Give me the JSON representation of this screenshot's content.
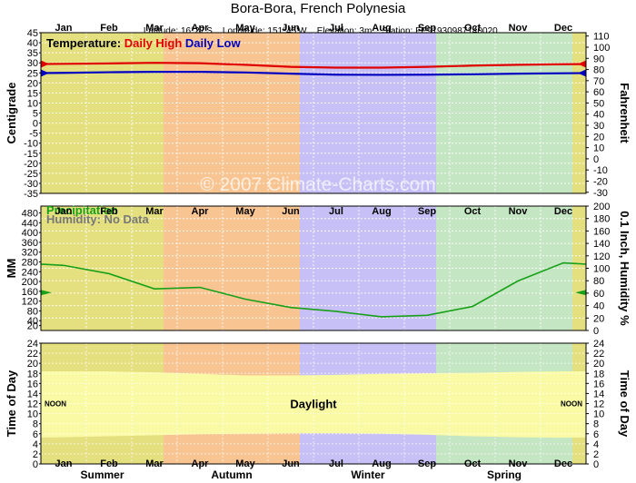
{
  "header": {
    "title": "Bora-Bora,  French Polynesia",
    "latitude": "Latitude: 16°27'S",
    "longitude": "Longitude: 151°45'W",
    "elevation": "Elevation: 3m",
    "station": "Station: FP91930987140020"
  },
  "watermark": "© 2007 Climate-Charts.com",
  "colors": {
    "summer": "#e5e07f",
    "autumn": "#f8c592",
    "winter": "#c6c0f6",
    "spring": "#c5e6c3",
    "high": "#e00000",
    "low": "#0000c0",
    "precip": "#18a018",
    "daylight": "#fafaa4",
    "night_tint": "#000000"
  },
  "chart_data": [
    {
      "type": "line",
      "panel": "temperature",
      "legend_label": "Temperature:",
      "x": [
        "Jan",
        "Feb",
        "Mar",
        "Apr",
        "May",
        "Jun",
        "Jul",
        "Aug",
        "Sep",
        "Oct",
        "Nov",
        "Dec"
      ],
      "series": [
        {
          "name": "Daily High",
          "values": [
            29.5,
            29.7,
            30.0,
            29.8,
            29.0,
            28.0,
            27.6,
            27.6,
            28.0,
            28.6,
            29.0,
            29.3
          ]
        },
        {
          "name": "Daily Low",
          "values": [
            25.0,
            25.3,
            25.5,
            25.5,
            25.2,
            24.6,
            24.1,
            24.0,
            24.1,
            24.3,
            24.6,
            24.8
          ]
        }
      ],
      "ylabel": "Centigrade",
      "ylabel_right": "Fahrenheit",
      "ylim": [
        -35,
        45
      ],
      "yticks": [
        -35,
        -30,
        -25,
        -20,
        -15,
        -10,
        -5,
        0,
        5,
        10,
        15,
        20,
        25,
        30,
        35,
        40,
        45
      ],
      "ylim_right": [
        -31,
        113
      ],
      "yticks_right": [
        -30,
        -20,
        -10,
        0,
        10,
        20,
        30,
        40,
        50,
        60,
        70,
        80,
        90,
        100,
        110
      ],
      "grid": true
    },
    {
      "type": "line",
      "panel": "precipitation",
      "x": [
        "Jan",
        "Feb",
        "Mar",
        "Apr",
        "May",
        "Jun",
        "Jul",
        "Aug",
        "Sep",
        "Oct",
        "Nov",
        "Dec"
      ],
      "series": [
        {
          "name": "Precipitation",
          "values": [
            266,
            232,
            170,
            176,
            128,
            94,
            78,
            56,
            62,
            98,
            202,
            276
          ]
        }
      ],
      "humidity_note": "Humidity: No Data",
      "ylabel": "MM",
      "ylabel_right": "0.1 Inch, Humidity %",
      "ylim": [
        0,
        508
      ],
      "yticks": [
        0,
        20,
        40,
        60,
        80,
        100,
        120,
        140,
        160,
        180,
        200,
        220,
        240,
        260,
        280,
        300,
        320,
        340,
        360,
        380,
        400,
        420,
        440,
        460,
        480,
        500
      ],
      "yticks_labels": [
        20,
        40,
        80,
        120,
        160,
        200,
        240,
        280,
        320,
        360,
        400,
        440,
        480
      ],
      "ylim_right": [
        0,
        200
      ],
      "yticks_right": [
        0,
        20,
        40,
        60,
        80,
        100,
        120,
        140,
        160,
        180,
        200
      ],
      "grid": true
    },
    {
      "type": "area",
      "panel": "daylight",
      "x": [
        "Jan",
        "Feb",
        "Mar",
        "Apr",
        "May",
        "Jun",
        "Jul",
        "Aug",
        "Sep",
        "Oct",
        "Nov",
        "Dec"
      ],
      "series": [
        {
          "name": "Sunrise",
          "values": [
            5.3,
            5.5,
            5.7,
            5.9,
            6.0,
            6.1,
            6.1,
            6.0,
            5.8,
            5.5,
            5.3,
            5.2
          ]
        },
        {
          "name": "Sunset",
          "values": [
            18.4,
            18.4,
            18.2,
            17.9,
            17.6,
            17.6,
            17.7,
            17.9,
            18.0,
            18.1,
            18.3,
            18.4
          ]
        }
      ],
      "label": "Daylight",
      "noon_label": "NOON",
      "ylabel": "Time of Day",
      "ylabel_right": "Time of Day",
      "ylim": [
        0,
        24
      ],
      "yticks": [
        0,
        2,
        4,
        6,
        8,
        10,
        12,
        14,
        16,
        18,
        20,
        22,
        24
      ],
      "grid": true
    }
  ],
  "months_top": [
    "Jan",
    "Feb",
    "Mar",
    "Apr",
    "May",
    "Jun",
    "Jul",
    "Aug",
    "Sep",
    "Oct",
    "Nov",
    "Dec"
  ],
  "months_bottom": [
    "Jan",
    "Feb",
    "Mar",
    "Apr",
    "May",
    "Jun",
    "Jul",
    "Aug",
    "Sep",
    "Oct",
    "Nov",
    "Dec"
  ],
  "seasons": [
    "Summer",
    "Autumn",
    "Winter",
    "Spring"
  ]
}
